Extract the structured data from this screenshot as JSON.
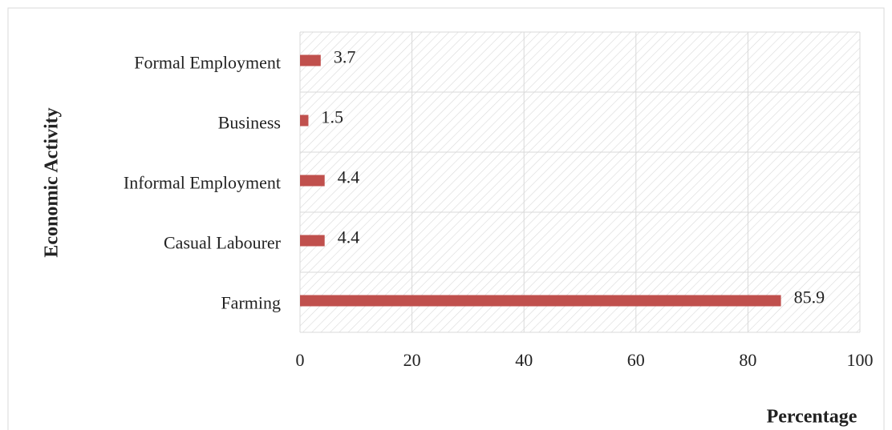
{
  "chart_data": {
    "type": "hbar",
    "categories": [
      "Formal Employment",
      "Business",
      "Informal Employment",
      "Casual Labourer",
      "Farming"
    ],
    "values": [
      3.7,
      1.5,
      4.4,
      4.4,
      85.9
    ],
    "color": "#c0504d",
    "xlabel": "Percentage",
    "ylabel": "Economic Activity",
    "xlim": [
      0,
      100
    ],
    "xticks": [
      0,
      20,
      40,
      60,
      80,
      100
    ],
    "grid": true
  }
}
